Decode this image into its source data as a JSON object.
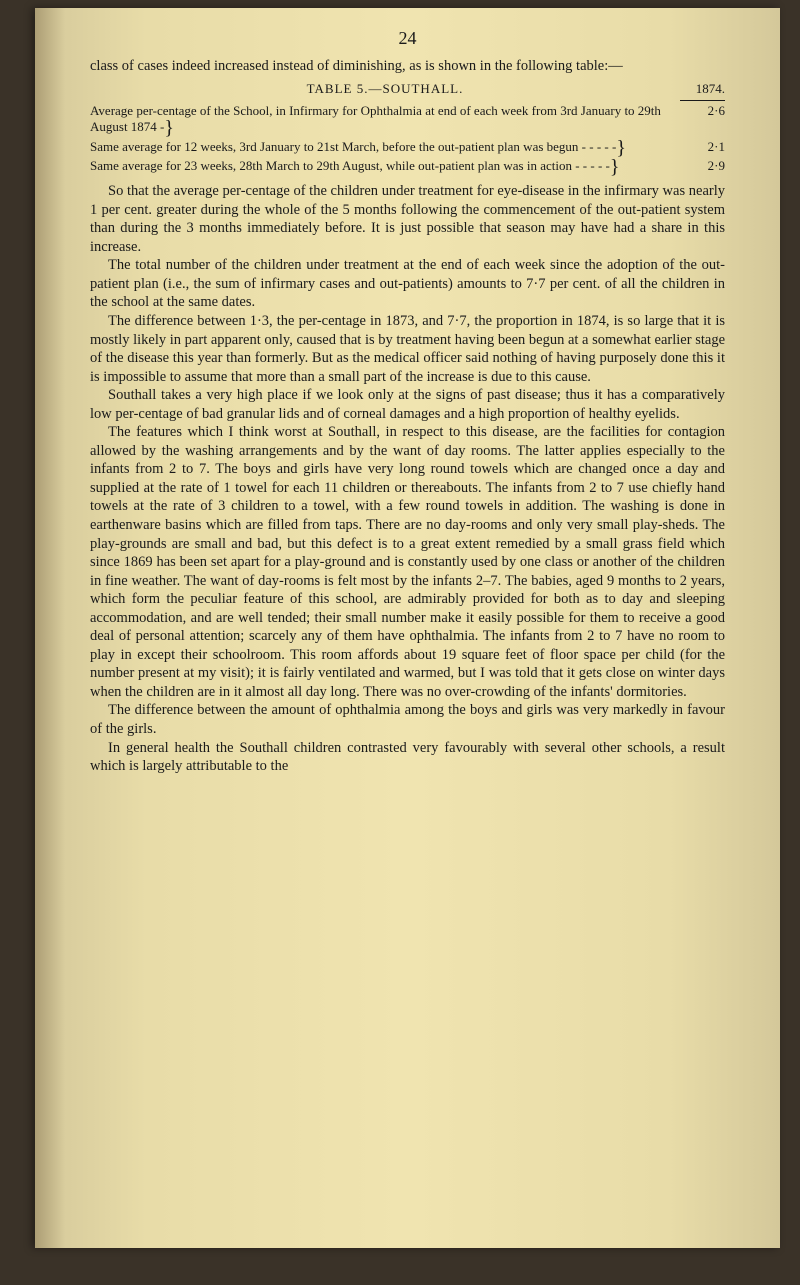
{
  "page_number": "24",
  "intro": "class of cases indeed increased instead of diminishing, as is shown in the following table:—",
  "table": {
    "title": "TABLE 5.—SOUTHALL.",
    "year": "1874.",
    "rows": [
      {
        "desc": "Average per-centage of the School, in Infirmary for Ophthalmia at end of each week from 3rd January to 29th August 1874   -",
        "val": "2·6"
      },
      {
        "desc": "Same average for 12 weeks, 3rd January to 21st March, before the out-patient plan was begun     -     -     -     -     -",
        "val": "2·1"
      },
      {
        "desc": "Same average for 23 weeks, 28th March to 29th August, while out-patient plan was in action     -     -     -     -     -",
        "val": "2·9"
      }
    ]
  },
  "paragraphs": [
    "So that the average per-centage of the children under treatment for eye-disease in the infirmary was nearly 1 per cent. greater during the whole of the 5 months following the commencement of the out-patient system than during the 3 months immediately before. It is just possible that season may have had a share in this increase.",
    "The total number of the children under treatment at the end of each week since the adoption of the out-patient plan (i.e., the sum of infirmary cases and out-patients) amounts to 7·7 per cent. of all the children in the school at the same dates.",
    "The difference between 1·3, the per-centage in 1873, and 7·7, the proportion in 1874, is so large that it is mostly likely in part apparent only, caused that is by treatment having been begun at a somewhat earlier stage of the disease this year than formerly. But as the medical officer said nothing of having purposely done this it is impossible to assume that more than a small part of the increase is due to this cause.",
    "Southall takes a very high place if we look only at the signs of past disease; thus it has a comparatively low per-centage of bad granular lids and of corneal damages and a high proportion of healthy eyelids.",
    "The features which I think worst at Southall, in respect to this disease, are the facilities for contagion allowed by the washing arrangements and by the want of day rooms. The latter applies especially to the infants from 2 to 7. The boys and girls have very long round towels which are changed once a day and supplied at the rate of 1 towel for each 11 children or thereabouts. The infants from 2 to 7 use chiefly hand towels at the rate of 3 children to a towel, with a few round towels in addition. The washing is done in earthenware basins which are filled from taps. There are no day-rooms and only very small play-sheds. The play-grounds are small and bad, but this defect is to a great extent remedied by a small grass field which since 1869 has been set apart for a play-ground and is constantly used by one class or another of the children in fine weather. The want of day-rooms is felt most by the infants 2–7. The babies, aged 9 months to 2 years, which form the peculiar feature of this school, are admirably provided for both as to day and sleeping accommodation, and are well tended; their small number make it easily possible for them to receive a good deal of personal attention; scarcely any of them have ophthalmia. The infants from 2 to 7 have no room to play in except their schoolroom. This room affords about 19 square feet of floor space per child (for the number present at my visit); it is fairly ventilated and warmed, but I was told that it gets close on winter days when the children are in it almost all day long. There was no over-crowding of the infants' dormitories.",
    "The difference between the amount of ophthalmia among the boys and girls was very markedly in favour of the girls.",
    "In general health the Southall children contrasted very favourably with several other schools, a result which is largely attributable to the"
  ]
}
